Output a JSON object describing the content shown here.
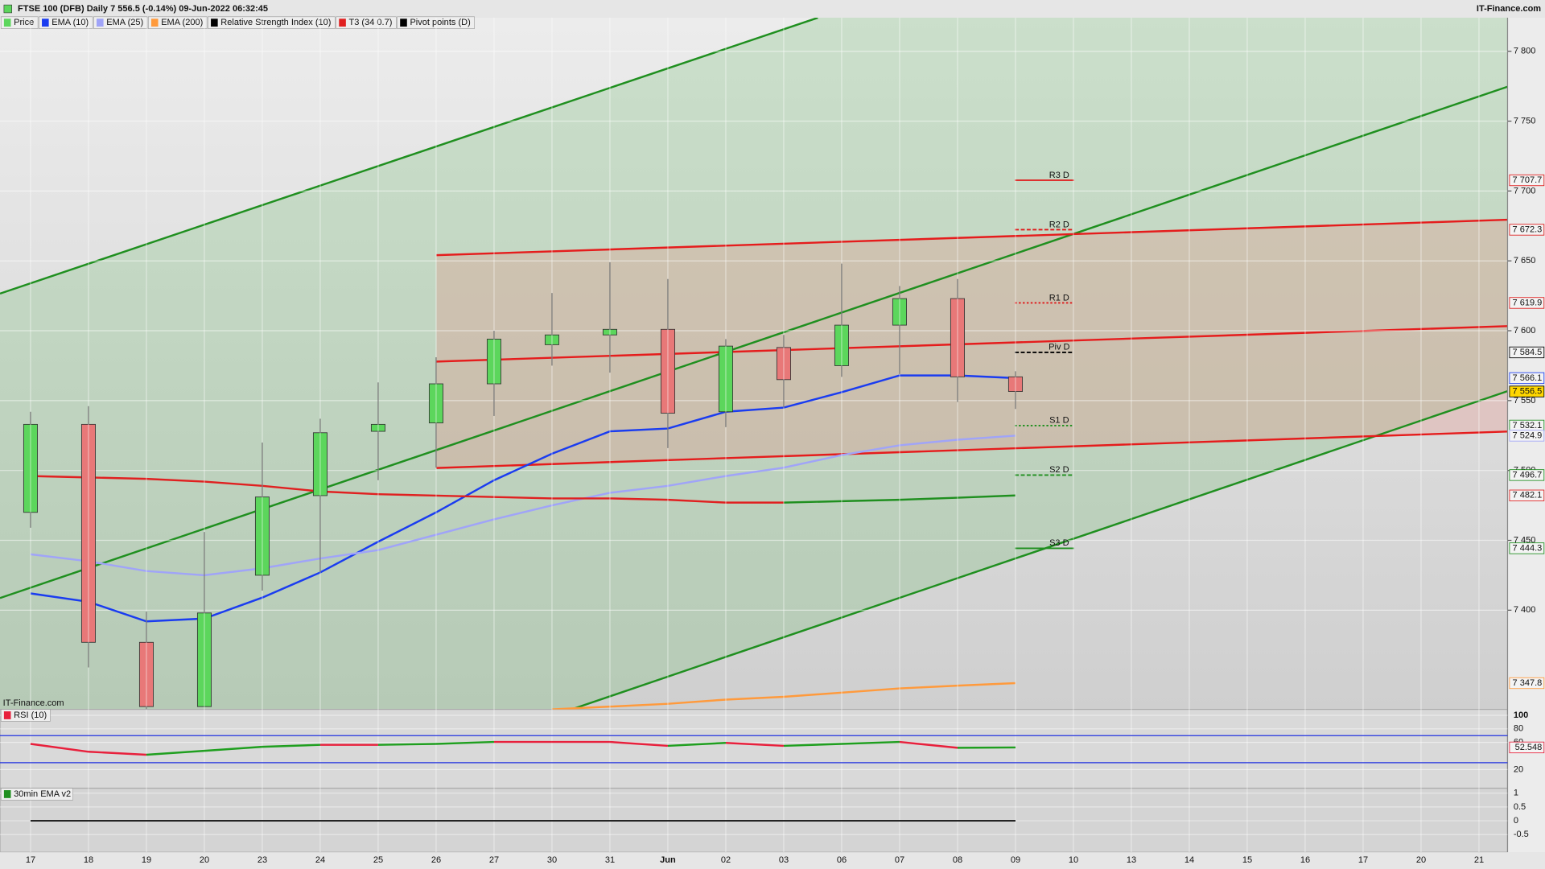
{
  "chart_data": {
    "type": "candlestick",
    "title": "FTSE 100 (DFB) Daily 7 556.5 (-0.14%) 09-Jun-2022 06:32:45",
    "brand": "IT-Finance.com",
    "watermark": "IT-Finance.com",
    "categories": [
      "17",
      "18",
      "19",
      "20",
      "23",
      "24",
      "25",
      "26",
      "27",
      "30",
      "31",
      "Jun",
      "02",
      "03",
      "06",
      "07",
      "08",
      "09",
      "10",
      "13",
      "14",
      "15",
      "16",
      "17",
      "20",
      "21"
    ],
    "ylim": [
      7329,
      7824
    ],
    "yticks": [
      {
        "value": 7400,
        "label": "7 400"
      },
      {
        "value": 7450,
        "label": "7 450"
      },
      {
        "value": 7500,
        "label": "7 500"
      },
      {
        "value": 7550,
        "label": "7 550"
      },
      {
        "value": 7600,
        "label": "7 600"
      },
      {
        "value": 7650,
        "label": "7 650"
      },
      {
        "value": 7700,
        "label": "7 700"
      },
      {
        "value": 7750,
        "label": "7 750"
      },
      {
        "value": 7800,
        "label": "7 800"
      }
    ],
    "price": {
      "name": "Price",
      "up_color": "#5cd65c",
      "down_color": "#e87878",
      "open": [
        7470,
        7533,
        7377,
        7331,
        7425,
        7482,
        7528,
        7534,
        7562,
        7590,
        7597,
        7601,
        7542,
        7588,
        7575,
        7604,
        7623,
        7567,
        null,
        null,
        null,
        null,
        null,
        null,
        null,
        null
      ],
      "high": [
        7542,
        7546,
        7399,
        7456,
        7520,
        7537,
        7563,
        7581,
        7600,
        7627,
        7649,
        7637,
        7594,
        7597,
        7648,
        7632,
        7637,
        7571,
        null,
        null,
        null,
        null,
        null,
        null,
        null,
        null
      ],
      "low": [
        7459,
        7359,
        7329,
        7331,
        7414,
        7427,
        7493,
        7502,
        7539,
        7575,
        7570,
        7516,
        7531,
        7545,
        7567,
        7569,
        7549,
        7544,
        null,
        null,
        null,
        null,
        null,
        null,
        null,
        null
      ],
      "close": [
        7533,
        7377,
        7331,
        7398,
        7481,
        7527,
        7533,
        7562,
        7594,
        7597,
        7601,
        7541,
        7589,
        7565,
        7604,
        7623,
        7567,
        7556.5,
        null,
        null,
        null,
        null,
        null,
        null,
        null,
        null
      ],
      "last_label": {
        "value": 7556.5,
        "label": "7 556.5"
      },
      "last_fill": "#ffd700"
    },
    "series": [
      {
        "name": "EMA (10)",
        "color": "#1a3cf0",
        "values": [
          7412,
          7406,
          7392,
          7394,
          7409,
          7427,
          7449,
          7470,
          7493,
          7512,
          7528,
          7530,
          7542,
          7545,
          7556,
          7568,
          7568,
          7566.1,
          null,
          null,
          null,
          null,
          null,
          null,
          null,
          null
        ],
        "last_label": {
          "value": 7566.1,
          "label": "7 566.1"
        }
      },
      {
        "name": "EMA (25)",
        "color": "#a0a4f8",
        "values": [
          7440,
          7435,
          7428,
          7425,
          7430,
          7437,
          7443,
          7454,
          7465,
          7475,
          7484,
          7489,
          7496,
          7502,
          7511,
          7518,
          7522,
          7524.9,
          null,
          null,
          null,
          null,
          null,
          null,
          null,
          null
        ],
        "last_label": {
          "value": 7524.9,
          "label": "7 524.9"
        }
      },
      {
        "name": "EMA (200)",
        "color": "#ff9a3c",
        "values": [
          null,
          null,
          null,
          null,
          null,
          null,
          null,
          null,
          null,
          7329,
          7331,
          7333,
          7336,
          7338,
          7341,
          7344,
          7346,
          7347.8,
          null,
          null,
          null,
          null,
          null,
          null,
          null,
          null
        ],
        "last_label": {
          "value": 7347.8,
          "label": "7 347.8"
        }
      },
      {
        "name": "T3 (34 0.7)",
        "color": "#e02020",
        "up_color": "#1f8f1f",
        "down_color": "#e02020",
        "values": [
          7496,
          7495,
          7494,
          7492,
          7489,
          7485,
          7483,
          7482,
          7481,
          7480,
          7480,
          7479,
          7477,
          7477,
          7478,
          7479,
          7480.5,
          7482.1,
          null,
          null,
          null,
          null,
          null,
          null,
          null,
          null
        ],
        "last_label": {
          "value": 7482.1,
          "label": "7 482.1"
        }
      }
    ],
    "pivots": {
      "name": "Pivot points (D)",
      "color": "#000000",
      "levels": [
        {
          "label": "R3 D",
          "value": 7707.7,
          "price_label": "7 707.7",
          "color": "#e01818",
          "dash": "solid"
        },
        {
          "label": "R2 D",
          "value": 7672.3,
          "price_label": "7 672.3",
          "color": "#e01818",
          "dash": "dashed"
        },
        {
          "label": "R1 D",
          "value": 7619.9,
          "price_label": "7 619.9",
          "color": "#e01818",
          "dash": "dotted"
        },
        {
          "label": "Piv D",
          "value": 7584.5,
          "price_label": "7 584.5",
          "color": "#000000",
          "dash": "dashed"
        },
        {
          "label": "S1 D",
          "value": 7532.1,
          "price_label": "7 532.1",
          "color": "#1f8f1f",
          "dash": "dotted"
        },
        {
          "label": "S2 D",
          "value": 7496.7,
          "price_label": "7 496.7",
          "color": "#1f8f1f",
          "dash": "dashed"
        },
        {
          "label": "S3 D",
          "value": 7444.3,
          "price_label": "7 444.3",
          "color": "#1f8f1f",
          "dash": "solid"
        }
      ]
    },
    "rsi": {
      "name": "Relative Strength Index (10)",
      "panel_label": "RSI (10)",
      "color": "#000000",
      "up_color": "#1f9f1f",
      "down_color": "#e8203c",
      "values": [
        57.8,
        46.2,
        41.8,
        47.6,
        53.5,
        56.4,
        56.4,
        57.8,
        60.7,
        60.7,
        60.7,
        54.9,
        59.3,
        54.9,
        57.8,
        60.7,
        52,
        52.548,
        null,
        null,
        null,
        null,
        null,
        null,
        null,
        null
      ],
      "last_label": {
        "value": 52.548,
        "label": "52.548"
      },
      "ylim": [
        -7.6,
        108.7
      ],
      "yticks": [
        20,
        60,
        80,
        100
      ],
      "levels": [
        30,
        70
      ],
      "level_color": "#2030e0"
    },
    "ema_panel": {
      "panel_label": "30min EMA v2",
      "color": "#111111",
      "values": [
        0,
        0,
        0,
        0,
        0,
        0,
        0,
        0,
        0,
        0,
        0,
        0,
        0,
        0,
        0,
        0,
        0,
        0,
        null,
        null,
        null,
        null,
        null,
        null,
        null,
        null
      ],
      "ylim": [
        -1.14,
        1.18
      ],
      "yticks": [
        1,
        0.5,
        0,
        -0.5
      ]
    }
  }
}
